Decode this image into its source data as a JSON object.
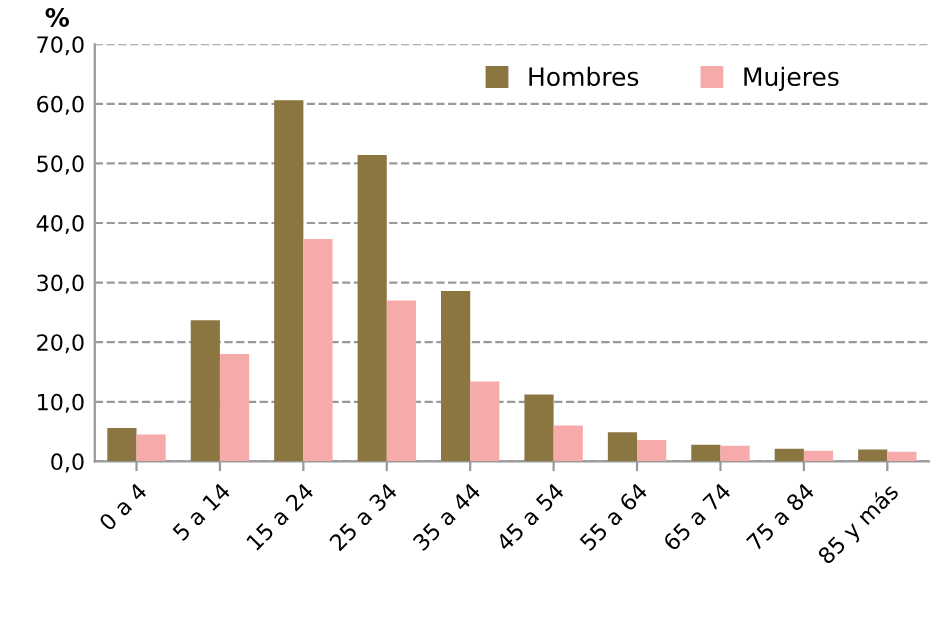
{
  "chart_data": {
    "type": "bar",
    "ylabel": "%",
    "categories": [
      "0 a 4",
      "5 a 14",
      "15 a 24",
      "25 a 34",
      "35 a 44",
      "45 a 54",
      "55 a 64",
      "65 a 74",
      "75 a 84",
      "85 y más"
    ],
    "series": [
      {
        "name": "Hombres",
        "color": "#8b7642",
        "values": [
          5.6,
          23.7,
          60.6,
          51.4,
          28.6,
          11.2,
          4.9,
          2.8,
          2.1,
          2.0
        ]
      },
      {
        "name": "Mujeres",
        "color": "#f7aaaa",
        "values": [
          4.5,
          18.0,
          37.3,
          27.0,
          13.4,
          6.0,
          3.6,
          2.6,
          1.8,
          1.6
        ]
      }
    ],
    "ylim": [
      0,
      70
    ],
    "yticks": [
      {
        "value": 0,
        "label": "0,0"
      },
      {
        "value": 10,
        "label": "10,0"
      },
      {
        "value": 20,
        "label": "20,0"
      },
      {
        "value": 30,
        "label": "30,0"
      },
      {
        "value": 40,
        "label": "40,0"
      },
      {
        "value": 50,
        "label": "50,0"
      },
      {
        "value": 60,
        "label": "60,0"
      },
      {
        "value": 70,
        "label": "70,0"
      }
    ],
    "grid": "y",
    "legend": "top right"
  }
}
